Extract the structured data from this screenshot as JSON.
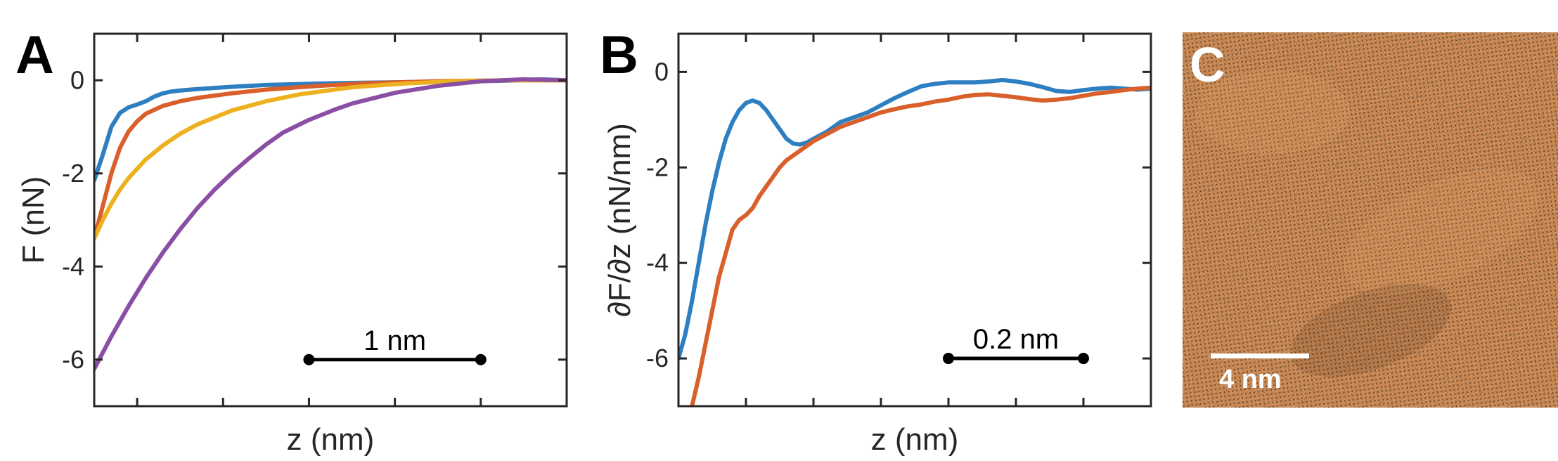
{
  "chart_data": [
    {
      "panel": "A",
      "type": "line",
      "xlabel": "z (nm)",
      "ylabel": "F (nN)",
      "xlim": [
        0,
        2.75
      ],
      "ylim": [
        -7,
        1
      ],
      "yticks": [
        0,
        -2,
        -4,
        -6
      ],
      "ytick_labels": [
        "0",
        "-2",
        "-4",
        "-6"
      ],
      "xticks": [
        0.25,
        0.75,
        1.25,
        1.75,
        2.25
      ],
      "scalebar": {
        "label": "1 nm",
        "x_start": 1.25,
        "x_end": 2.25,
        "y": -6
      },
      "series": [
        {
          "name": "blue",
          "color": "#2e7fc1",
          "x": [
            0,
            0.05,
            0.1,
            0.15,
            0.2,
            0.25,
            0.3,
            0.35,
            0.4,
            0.45,
            0.5,
            0.6,
            0.8,
            1.0,
            1.3,
            1.6,
            2.0,
            2.4,
            2.6,
            2.75
          ],
          "y": [
            -2.15,
            -1.6,
            -1.0,
            -0.7,
            -0.58,
            -0.52,
            -0.45,
            -0.35,
            -0.28,
            -0.24,
            -0.22,
            -0.19,
            -0.14,
            -0.1,
            -0.07,
            -0.05,
            -0.03,
            -0.01,
            0.02,
            0.0
          ]
        },
        {
          "name": "orange",
          "color": "#d95f2b",
          "x": [
            0,
            0.05,
            0.1,
            0.15,
            0.2,
            0.25,
            0.3,
            0.4,
            0.5,
            0.6,
            0.8,
            1.0,
            1.3,
            1.6,
            2.0,
            2.4,
            2.75
          ],
          "y": [
            -3.4,
            -2.7,
            -2.0,
            -1.45,
            -1.1,
            -0.88,
            -0.72,
            -0.55,
            -0.45,
            -0.38,
            -0.28,
            -0.2,
            -0.12,
            -0.06,
            -0.02,
            0.0,
            0.0
          ]
        },
        {
          "name": "yellow",
          "color": "#edb120",
          "x": [
            0,
            0.05,
            0.1,
            0.15,
            0.2,
            0.3,
            0.4,
            0.5,
            0.6,
            0.8,
            1.0,
            1.2,
            1.5,
            1.8,
            2.1,
            2.4,
            2.75
          ],
          "y": [
            -3.4,
            -3.0,
            -2.65,
            -2.35,
            -2.1,
            -1.7,
            -1.4,
            -1.15,
            -0.95,
            -0.65,
            -0.45,
            -0.3,
            -0.15,
            -0.07,
            -0.02,
            0.0,
            0.0
          ]
        },
        {
          "name": "purple",
          "color": "#8b4ea5",
          "x": [
            0,
            0.1,
            0.2,
            0.3,
            0.4,
            0.5,
            0.6,
            0.7,
            0.8,
            0.9,
            1.0,
            1.1,
            1.25,
            1.4,
            1.5,
            1.75,
            2.0,
            2.25,
            2.5,
            2.75
          ],
          "y": [
            -6.2,
            -5.5,
            -4.85,
            -4.25,
            -3.7,
            -3.2,
            -2.75,
            -2.35,
            -2.0,
            -1.68,
            -1.38,
            -1.12,
            -0.85,
            -0.63,
            -0.5,
            -0.27,
            -0.12,
            -0.02,
            0.02,
            0.0
          ]
        }
      ]
    },
    {
      "panel": "B",
      "type": "line",
      "xlabel": "z (nm)",
      "ylabel": "∂F/∂z (nN/nm)",
      "xlim": [
        0,
        0.7
      ],
      "ylim": [
        -7,
        0.8
      ],
      "yticks": [
        0,
        -2,
        -4,
        -6
      ],
      "ytick_labels": [
        "0",
        "-2",
        "-4",
        "-6"
      ],
      "xticks": [
        0.1,
        0.2,
        0.3,
        0.4,
        0.5,
        0.6
      ],
      "scalebar": {
        "label": "0.2 nm",
        "x_start": 0.4,
        "x_end": 0.6,
        "y": -6
      },
      "series": [
        {
          "name": "blue",
          "color": "#2e7fc1",
          "x": [
            0,
            0.01,
            0.02,
            0.03,
            0.04,
            0.05,
            0.06,
            0.07,
            0.08,
            0.09,
            0.1,
            0.11,
            0.12,
            0.13,
            0.14,
            0.15,
            0.16,
            0.17,
            0.18,
            0.19,
            0.2,
            0.22,
            0.24,
            0.26,
            0.28,
            0.3,
            0.32,
            0.34,
            0.36,
            0.38,
            0.4,
            0.42,
            0.44,
            0.46,
            0.48,
            0.5,
            0.52,
            0.54,
            0.56,
            0.58,
            0.6,
            0.62,
            0.64,
            0.66,
            0.68,
            0.7
          ],
          "y": [
            -6.0,
            -5.5,
            -4.8,
            -4.0,
            -3.2,
            -2.5,
            -1.9,
            -1.4,
            -1.05,
            -0.8,
            -0.65,
            -0.6,
            -0.65,
            -0.8,
            -1.0,
            -1.2,
            -1.4,
            -1.5,
            -1.52,
            -1.48,
            -1.4,
            -1.25,
            -1.05,
            -0.95,
            -0.85,
            -0.7,
            -0.55,
            -0.42,
            -0.3,
            -0.25,
            -0.22,
            -0.22,
            -0.22,
            -0.2,
            -0.17,
            -0.2,
            -0.25,
            -0.32,
            -0.4,
            -0.42,
            -0.38,
            -0.35,
            -0.33,
            -0.35,
            -0.37,
            -0.35
          ]
        },
        {
          "name": "orange",
          "color": "#d95f2b",
          "x": [
            0.02,
            0.03,
            0.04,
            0.05,
            0.06,
            0.07,
            0.08,
            0.09,
            0.1,
            0.11,
            0.12,
            0.13,
            0.14,
            0.15,
            0.16,
            0.17,
            0.18,
            0.19,
            0.2,
            0.22,
            0.24,
            0.26,
            0.28,
            0.3,
            0.32,
            0.34,
            0.36,
            0.38,
            0.4,
            0.42,
            0.44,
            0.46,
            0.48,
            0.5,
            0.52,
            0.54,
            0.56,
            0.58,
            0.6,
            0.62,
            0.64,
            0.66,
            0.68,
            0.7
          ],
          "y": [
            -7.0,
            -6.4,
            -5.7,
            -5.0,
            -4.3,
            -3.8,
            -3.3,
            -3.1,
            -3.0,
            -2.85,
            -2.6,
            -2.4,
            -2.2,
            -2.0,
            -1.85,
            -1.75,
            -1.65,
            -1.55,
            -1.45,
            -1.3,
            -1.15,
            -1.05,
            -0.95,
            -0.85,
            -0.78,
            -0.72,
            -0.68,
            -0.62,
            -0.58,
            -0.52,
            -0.48,
            -0.47,
            -0.5,
            -0.53,
            -0.57,
            -0.6,
            -0.58,
            -0.55,
            -0.5,
            -0.45,
            -0.42,
            -0.38,
            -0.35,
            -0.33
          ]
        }
      ]
    },
    {
      "panel": "C",
      "type": "image",
      "scalebar": {
        "label": "4 nm"
      },
      "colors": {
        "dark": "#1e140a",
        "light": "#e8a56c"
      }
    }
  ]
}
